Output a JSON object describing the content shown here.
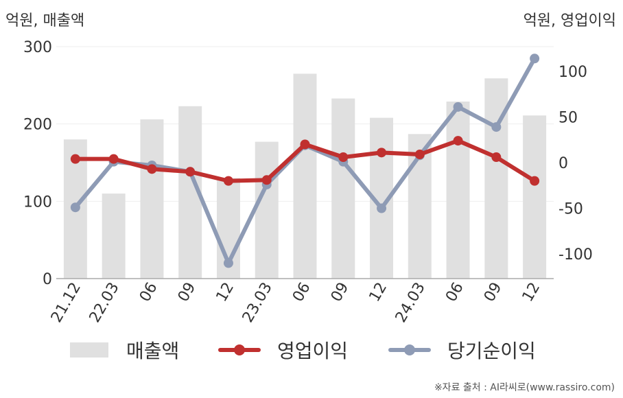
{
  "header": {
    "left_axis_title": "억원, 매출액",
    "right_axis_title": "억원, 영업이익"
  },
  "legend": {
    "revenue": "매출액",
    "operating_profit": "영업이익",
    "net_income": "당기순이익"
  },
  "source": "※자료 출처 : AI라씨로(www.rassiro.com)",
  "colors": {
    "revenue_bar": "#e0e0e0",
    "operating_profit": "#c0302f",
    "net_income": "#8e9bb5",
    "grid": "#eeeeee",
    "axis": "#aaaaaa"
  },
  "chart_data": {
    "type": "bar+line",
    "categories": [
      "21.12",
      "22.03",
      "06",
      "09",
      "12",
      "23.03",
      "06",
      "09",
      "12",
      "24.03",
      "06",
      "09",
      "12"
    ],
    "left_axis": {
      "ticks": [
        0,
        100,
        200,
        300
      ],
      "ylim": [
        0,
        300
      ]
    },
    "right_axis": {
      "ticks": [
        -100,
        -50,
        0,
        50,
        100
      ],
      "ylim": [
        -127,
        127
      ]
    },
    "series": [
      {
        "name": "매출액",
        "type": "bar",
        "axis": "left",
        "values": [
          180,
          110,
          206,
          223,
          130,
          177,
          265,
          233,
          208,
          187,
          229,
          259,
          211
        ]
      },
      {
        "name": "영업이익",
        "type": "line",
        "axis": "right",
        "values": [
          4,
          4,
          -7,
          -10,
          -20,
          -19,
          20,
          6,
          11,
          9,
          24,
          6,
          -20
        ]
      },
      {
        "name": "당기순이익",
        "type": "line",
        "axis": "right",
        "values": [
          -49,
          1,
          -3,
          -10,
          -110,
          -24,
          19,
          1,
          -50,
          8,
          61,
          39,
          114
        ]
      }
    ],
    "grid": true,
    "legend_position": "bottom"
  }
}
